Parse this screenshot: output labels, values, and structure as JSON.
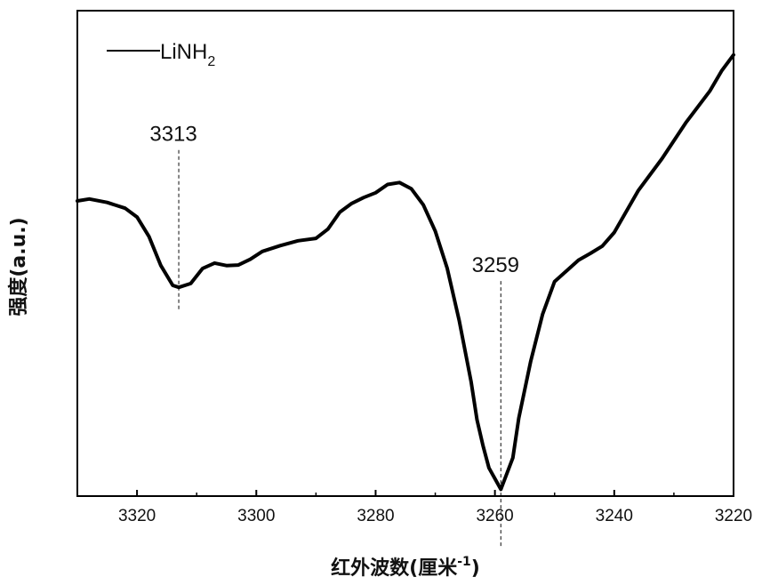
{
  "chart_data": {
    "type": "line",
    "title": "",
    "xlabel_main": "红外波数(厘米",
    "xlabel_sup": "-1",
    "xlabel_close": ")",
    "ylabel": "强度(a.u.)",
    "xlim": [
      3330,
      3220
    ],
    "ylim": [
      0,
      100
    ],
    "x_ticks": [
      3320,
      3300,
      3280,
      3260,
      3240,
      3220
    ],
    "x_tick_labels": [
      "3320",
      "3300",
      "3280",
      "3260",
      "3240",
      "3220"
    ],
    "y_ticks_shown": false,
    "grid": false,
    "legend": {
      "placement": "top-left",
      "base": "LiNH",
      "sub": "2"
    },
    "series": [
      {
        "name": "LiNH2",
        "color": "#000000",
        "x": [
          3330,
          3328,
          3325,
          3322,
          3320,
          3318,
          3316,
          3314,
          3313,
          3311,
          3309,
          3307,
          3305,
          3303,
          3301,
          3299,
          3296,
          3293,
          3290,
          3288,
          3286,
          3284,
          3282,
          3280,
          3278,
          3276,
          3274,
          3272,
          3270,
          3268,
          3266,
          3264,
          3263,
          3262,
          3261,
          3259,
          3257,
          3256,
          3254,
          3252,
          3250,
          3248,
          3246,
          3244,
          3242,
          3240,
          3236,
          3232,
          3228,
          3224,
          3222,
          3220
        ],
        "y": [
          60.8,
          61.2,
          60.5,
          59.3,
          57.5,
          53.5,
          47.5,
          43.4,
          43.0,
          43.8,
          46.9,
          48.0,
          47.5,
          47.6,
          48.8,
          50.4,
          51.6,
          52.6,
          53.1,
          55.0,
          58.5,
          60.3,
          61.5,
          62.5,
          64.2,
          64.6,
          63.3,
          60.0,
          54.6,
          46.9,
          36.2,
          23.6,
          15.7,
          10.4,
          5.8,
          1.4,
          7.9,
          16.1,
          27.8,
          37.5,
          44.2,
          46.4,
          48.6,
          50.0,
          51.5,
          54.3,
          62.9,
          69.5,
          76.9,
          83.4,
          87.6,
          90.9
        ]
      }
    ],
    "annotations": [
      {
        "label": "3313",
        "x": 3313,
        "y_from": 43.0,
        "y_line_top": 71.3,
        "y_line_bottom": 38.0
      },
      {
        "label": "3259",
        "x": 3259,
        "y_from": 1.4,
        "y_line_top": 44.3,
        "y_line_bottom": -10.5
      }
    ]
  }
}
